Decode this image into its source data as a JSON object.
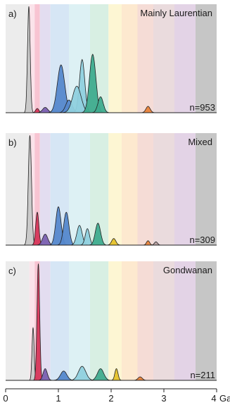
{
  "chart_data": [
    {
      "type": "area",
      "panel_label": "a)",
      "title": "Mainly Laurentian",
      "annotation": "n=953",
      "x_unit": "Ga",
      "xlim": [
        0,
        4
      ],
      "peaks": [
        {
          "x": 0.44,
          "height": 1.0,
          "width": 0.025,
          "color": "#c8c8c8"
        },
        {
          "x": 0.6,
          "height": 0.04,
          "width": 0.03,
          "color": "#d6365a"
        },
        {
          "x": 0.75,
          "height": 0.05,
          "width": 0.05,
          "color": "#7a5fb0"
        },
        {
          "x": 1.05,
          "height": 0.45,
          "width": 0.07,
          "color": "#5588cc"
        },
        {
          "x": 1.2,
          "height": 0.12,
          "width": 0.06,
          "color": "#5588cc"
        },
        {
          "x": 1.45,
          "height": 0.5,
          "width": 0.05,
          "color": "#8fd0de"
        },
        {
          "x": 1.35,
          "height": 0.25,
          "width": 0.08,
          "color": "#8fd0de"
        },
        {
          "x": 1.65,
          "height": 0.55,
          "width": 0.06,
          "color": "#3fab8e"
        },
        {
          "x": 1.8,
          "height": 0.15,
          "width": 0.05,
          "color": "#3fab8e"
        },
        {
          "x": 2.7,
          "height": 0.06,
          "width": 0.04,
          "color": "#e8823a"
        }
      ]
    },
    {
      "type": "area",
      "panel_label": "b)",
      "title": "Mixed",
      "annotation": "n=309",
      "x_unit": "Ga",
      "xlim": [
        0,
        4
      ],
      "peaks": [
        {
          "x": 0.46,
          "height": 1.0,
          "width": 0.03,
          "color": "#c8c8c8"
        },
        {
          "x": 0.6,
          "height": 0.3,
          "width": 0.03,
          "color": "#d6365a"
        },
        {
          "x": 0.75,
          "height": 0.1,
          "width": 0.05,
          "color": "#7a5fb0"
        },
        {
          "x": 1.0,
          "height": 0.35,
          "width": 0.05,
          "color": "#5588cc"
        },
        {
          "x": 1.15,
          "height": 0.3,
          "width": 0.05,
          "color": "#5588cc"
        },
        {
          "x": 1.4,
          "height": 0.18,
          "width": 0.05,
          "color": "#8fd0de"
        },
        {
          "x": 1.55,
          "height": 0.15,
          "width": 0.04,
          "color": "#8fd0de"
        },
        {
          "x": 1.75,
          "height": 0.2,
          "width": 0.05,
          "color": "#3fab8e"
        },
        {
          "x": 2.05,
          "height": 0.06,
          "width": 0.04,
          "color": "#e6c22a"
        },
        {
          "x": 2.7,
          "height": 0.04,
          "width": 0.03,
          "color": "#e8823a"
        },
        {
          "x": 2.85,
          "height": 0.03,
          "width": 0.03,
          "color": "#b8a0a0"
        }
      ]
    },
    {
      "type": "area",
      "panel_label": "c)",
      "title": "Gondwanan",
      "annotation": "n=211",
      "x_unit": "Ga",
      "xlim": [
        0,
        4
      ],
      "peaks": [
        {
          "x": 0.52,
          "height": 0.45,
          "width": 0.02,
          "color": "#c8c8c8"
        },
        {
          "x": 0.62,
          "height": 1.0,
          "width": 0.025,
          "color": "#d6365a"
        },
        {
          "x": 0.75,
          "height": 0.1,
          "width": 0.04,
          "color": "#7a5fb0"
        },
        {
          "x": 1.1,
          "height": 0.08,
          "width": 0.06,
          "color": "#5588cc"
        },
        {
          "x": 1.45,
          "height": 0.12,
          "width": 0.07,
          "color": "#8fd0de"
        },
        {
          "x": 1.8,
          "height": 0.1,
          "width": 0.06,
          "color": "#3fab8e"
        },
        {
          "x": 2.1,
          "height": 0.1,
          "width": 0.03,
          "color": "#e6c22a"
        },
        {
          "x": 2.55,
          "height": 0.03,
          "width": 0.04,
          "color": "#e8823a"
        }
      ]
    }
  ],
  "bands": [
    {
      "from": 0.0,
      "to": 0.45,
      "color": "#ececec"
    },
    {
      "from": 0.45,
      "to": 0.55,
      "color": "#fbe3ea"
    },
    {
      "from": 0.55,
      "to": 0.65,
      "color": "#f8c4d2"
    },
    {
      "from": 0.65,
      "to": 0.85,
      "color": "#e3ddf0"
    },
    {
      "from": 0.85,
      "to": 1.2,
      "color": "#d6e6f5"
    },
    {
      "from": 1.2,
      "to": 1.6,
      "color": "#ddf1f4"
    },
    {
      "from": 1.6,
      "to": 1.95,
      "color": "#d8efe3"
    },
    {
      "from": 1.95,
      "to": 2.2,
      "color": "#fdf6d3"
    },
    {
      "from": 2.2,
      "to": 2.5,
      "color": "#fde9cf"
    },
    {
      "from": 2.5,
      "to": 2.8,
      "color": "#f5dcd6"
    },
    {
      "from": 2.8,
      "to": 3.2,
      "color": "#eadbdd"
    },
    {
      "from": 3.2,
      "to": 3.6,
      "color": "#e3d3e6"
    },
    {
      "from": 3.6,
      "to": 4.0,
      "color": "#c6c6c6"
    }
  ],
  "x_axis": {
    "ticks": [
      0,
      1,
      2,
      3,
      4
    ],
    "tick_labels": [
      "0",
      "1",
      "2",
      "3",
      "4"
    ],
    "unit_label": "Ga"
  }
}
